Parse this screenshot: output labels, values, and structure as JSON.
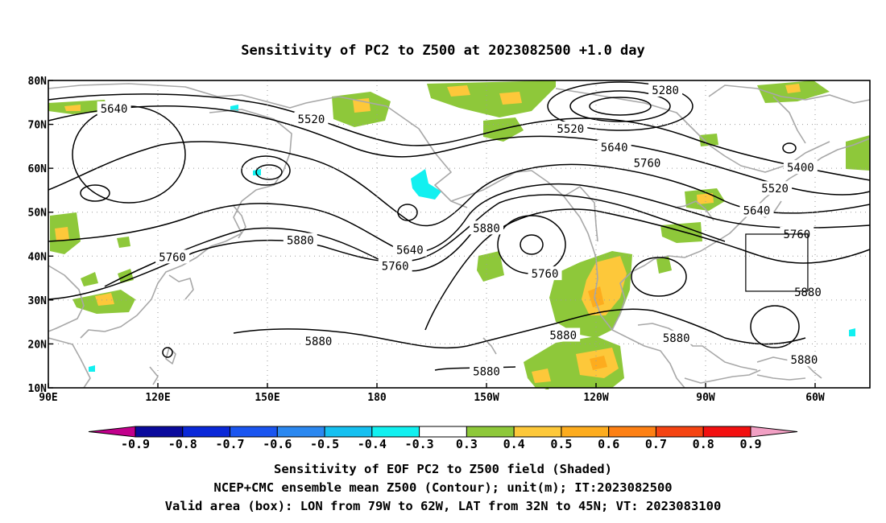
{
  "title": "Sensitivity of PC2 to Z500 at 2023082500 +1.0 day",
  "map": {
    "lat_ticks": [
      "80N",
      "70N",
      "60N",
      "50N",
      "40N",
      "30N",
      "20N",
      "10N"
    ],
    "lon_ticks": [
      "90E",
      "120E",
      "150E",
      "180",
      "150W",
      "120W",
      "90W",
      "60W"
    ],
    "contour_labels": [
      {
        "text": "5640",
        "lon": 108,
        "lat": 73.6
      },
      {
        "text": "5520",
        "lon": 162,
        "lat": 71.2
      },
      {
        "text": "5280",
        "lon": -101,
        "lat": 77.8
      },
      {
        "text": "5520",
        "lon": -127,
        "lat": 69.0
      },
      {
        "text": "5640",
        "lon": -115,
        "lat": 64.8
      },
      {
        "text": "5760",
        "lon": -106,
        "lat": 61.2
      },
      {
        "text": "5400",
        "lon": -64,
        "lat": 60.2
      },
      {
        "text": "5520",
        "lon": -71,
        "lat": 55.4
      },
      {
        "text": "5640",
        "lon": -76,
        "lat": 50.4
      },
      {
        "text": "5760",
        "lon": -65,
        "lat": 45.0
      },
      {
        "text": "5880",
        "lon": -62,
        "lat": 31.8
      },
      {
        "text": "5880",
        "lon": 159,
        "lat": 43.6
      },
      {
        "text": "5760",
        "lon": 124,
        "lat": 39.8
      },
      {
        "text": "5640",
        "lon": -171,
        "lat": 41.4
      },
      {
        "text": "5760",
        "lon": -175,
        "lat": 37.8
      },
      {
        "text": "5880",
        "lon": -150,
        "lat": 46.4
      },
      {
        "text": "5760",
        "lon": -134,
        "lat": 36.0
      },
      {
        "text": "5880",
        "lon": -129,
        "lat": 22.0
      },
      {
        "text": "5880",
        "lon": -98,
        "lat": 21.4
      },
      {
        "text": "5880",
        "lon": -63,
        "lat": 16.4
      },
      {
        "text": "5880",
        "lon": 164,
        "lat": 20.6
      },
      {
        "text": "5880",
        "lon": -150,
        "lat": 13.8
      }
    ]
  },
  "colorbar": {
    "colors": [
      "#c2008c",
      "#0a0a9c",
      "#0a28d8",
      "#1a55f0",
      "#2b88f0",
      "#16c0f0",
      "#12f0f0",
      "#ffffff",
      "#8ec83a",
      "#fdc83a",
      "#fdac1e",
      "#fd8014",
      "#f54412",
      "#f21010",
      "#f2a0c4"
    ],
    "tick_labels": [
      "-0.9",
      "-0.8",
      "-0.7",
      "-0.6",
      "-0.5",
      "-0.4",
      "-0.3",
      "0.3",
      "0.4",
      "0.5",
      "0.6",
      "0.7",
      "0.8",
      "0.9"
    ]
  },
  "footer": {
    "line1": "Sensitivity of EOF PC2 to Z500 field (Shaded)",
    "line2": "NCEP+CMC ensemble mean Z500 (Contour); unit(m); IT:2023082500",
    "line3": "Valid area (box): LON from 79W to 62W, LAT from 32N to 45N; VT: 2023083100"
  }
}
